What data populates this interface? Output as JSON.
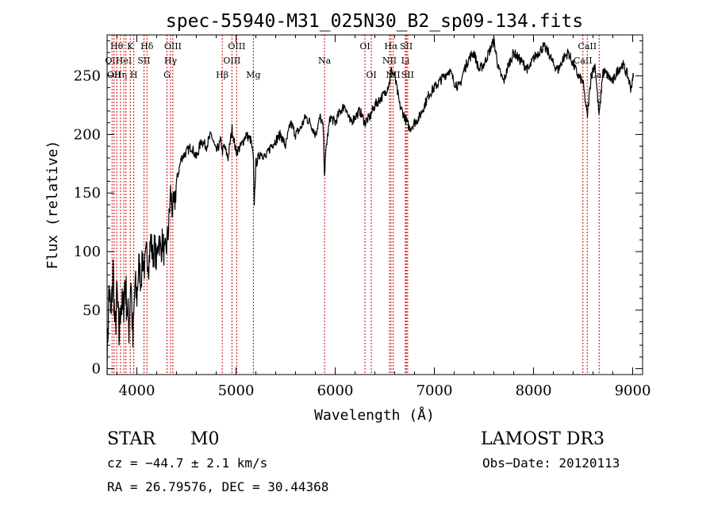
{
  "chart_data": {
    "type": "line",
    "title": "spec-55940-M31_025N30_B2_sp09-134.fits",
    "xlabel": "Wavelength (Å)",
    "ylabel": "Flux (relative)",
    "xlim": [
      3700,
      9100
    ],
    "ylim": [
      -5,
      285
    ],
    "xticks": [
      4000,
      5000,
      6000,
      7000,
      8000,
      9000
    ],
    "yticks": [
      0,
      50,
      100,
      150,
      200,
      250
    ],
    "xtick_labels": [
      "4000",
      "5000",
      "6000",
      "7000",
      "8000",
      "9000"
    ],
    "ytick_labels": [
      "0",
      "50",
      "100",
      "150",
      "200",
      "250"
    ],
    "line_color": "#000000",
    "marker_color": "#cc0000",
    "series": [
      {
        "x": [
          3700,
          3720,
          3740,
          3760,
          3780,
          3800,
          3820,
          3840,
          3860,
          3880,
          3900,
          3920,
          3940,
          3960,
          3980,
          4000,
          4020,
          4040,
          4060,
          4080,
          4100,
          4120,
          4140,
          4160,
          4180,
          4200,
          4220,
          4240,
          4260,
          4280,
          4300,
          4320,
          4340,
          4360,
          4380,
          4400,
          4450,
          4500,
          4550,
          4600,
          4650,
          4700,
          4750,
          4800,
          4850,
          4861,
          4880,
          4920,
          4960,
          5000,
          5050,
          5100,
          5150,
          5175,
          5183,
          5200,
          5250,
          5300,
          5350,
          5400,
          5450,
          5500,
          5550,
          5600,
          5650,
          5700,
          5750,
          5800,
          5850,
          5880,
          5893,
          5910,
          5950,
          6000,
          6050,
          6100,
          6150,
          6200,
          6250,
          6300,
          6350,
          6400,
          6450,
          6500,
          6550,
          6563,
          6600,
          6650,
          6700,
          6750,
          6800,
          6850,
          6900,
          6950,
          7000,
          7050,
          7100,
          7150,
          7200,
          7250,
          7300,
          7350,
          7400,
          7450,
          7500,
          7550,
          7600,
          7650,
          7700,
          7750,
          7800,
          7850,
          7900,
          7950,
          8000,
          8050,
          8100,
          8150,
          8200,
          8250,
          8300,
          8350,
          8400,
          8450,
          8498,
          8542,
          8580,
          8620,
          8662,
          8700,
          8750,
          8800,
          8850,
          8900,
          8950,
          8980,
          9000,
          9010
        ],
        "y": [
          5,
          70,
          40,
          85,
          30,
          65,
          25,
          60,
          45,
          75,
          55,
          35,
          80,
          20,
          70,
          60,
          90,
          75,
          95,
          85,
          100,
          90,
          110,
          95,
          105,
          90,
          115,
          100,
          110,
          95,
          105,
          120,
          150,
          135,
          140,
          160,
          180,
          185,
          190,
          180,
          195,
          190,
          200,
          185,
          195,
          185,
          190,
          180,
          205,
          185,
          190,
          200,
          195,
          180,
          140,
          175,
          185,
          180,
          190,
          195,
          200,
          190,
          210,
          200,
          205,
          215,
          210,
          200,
          215,
          205,
          165,
          190,
          215,
          210,
          220,
          225,
          210,
          215,
          220,
          210,
          215,
          225,
          230,
          235,
          245,
          255,
          250,
          225,
          215,
          205,
          210,
          215,
          225,
          235,
          240,
          245,
          250,
          255,
          245,
          240,
          255,
          265,
          270,
          255,
          260,
          270,
          280,
          255,
          245,
          260,
          270,
          265,
          260,
          255,
          265,
          270,
          275,
          270,
          260,
          255,
          265,
          270,
          260,
          250,
          245,
          215,
          250,
          260,
          215,
          255,
          250,
          245,
          255,
          260,
          250,
          240,
          245,
          255
        ]
      }
    ],
    "lines": [
      {
        "x": 3750,
        "row": 1,
        "label": "OII"
      },
      {
        "x": 3770,
        "row": 2,
        "label": "OII"
      },
      {
        "x": 3797,
        "row": 0,
        "label": "Hθ"
      },
      {
        "x": 3835,
        "row": 2,
        "label": "Hη"
      },
      {
        "x": 3869,
        "row": 1,
        "label": "HeI"
      },
      {
        "x": 3890,
        "row": 2,
        "label": ""
      },
      {
        "x": 3934,
        "row": 0,
        "label": "K"
      },
      {
        "x": 3969,
        "row": 2,
        "label": "H"
      },
      {
        "x": 4072,
        "row": 1,
        "label": "SII"
      },
      {
        "x": 4102,
        "row": 0,
        "label": "Hδ"
      },
      {
        "x": 4304,
        "row": 2,
        "label": "G"
      },
      {
        "x": 4340,
        "row": 1,
        "label": "Hγ"
      },
      {
        "x": 4363,
        "row": 0,
        "label": "OIII"
      },
      {
        "x": 4861,
        "row": 2,
        "label": "Hβ"
      },
      {
        "x": 4959,
        "row": 1,
        "label": "OIII"
      },
      {
        "x": 5007,
        "row": 0,
        "label": "OIII"
      },
      {
        "x": 5175,
        "row": 2,
        "label": "Mg"
      },
      {
        "x": 5893,
        "row": 1,
        "label": "Na"
      },
      {
        "x": 6300,
        "row": 0,
        "label": "OI"
      },
      {
        "x": 6364,
        "row": 2,
        "label": "OI"
      },
      {
        "x": 6548,
        "row": 1,
        "label": "NII"
      },
      {
        "x": 6563,
        "row": 0,
        "label": "Hα"
      },
      {
        "x": 6584,
        "row": 2,
        "label": "NII"
      },
      {
        "x": 6708,
        "row": 1,
        "label": "Li"
      },
      {
        "x": 6717,
        "row": 0,
        "label": "SII"
      },
      {
        "x": 6731,
        "row": 2,
        "label": "SII"
      },
      {
        "x": 8498,
        "row": 1,
        "label": "CaII"
      },
      {
        "x": 8542,
        "row": 0,
        "label": "CaII"
      },
      {
        "x": 8662,
        "row": 2,
        "label": "CaII"
      }
    ]
  },
  "info": {
    "class": "STAR",
    "subclass": "M0",
    "survey": "LAMOST DR3",
    "cz": "cz = −44.7 ± 2.1 km/s",
    "obsdate": "Obs−Date: 20120113",
    "radec": "RA =  26.79576, DEC =  30.44368"
  }
}
